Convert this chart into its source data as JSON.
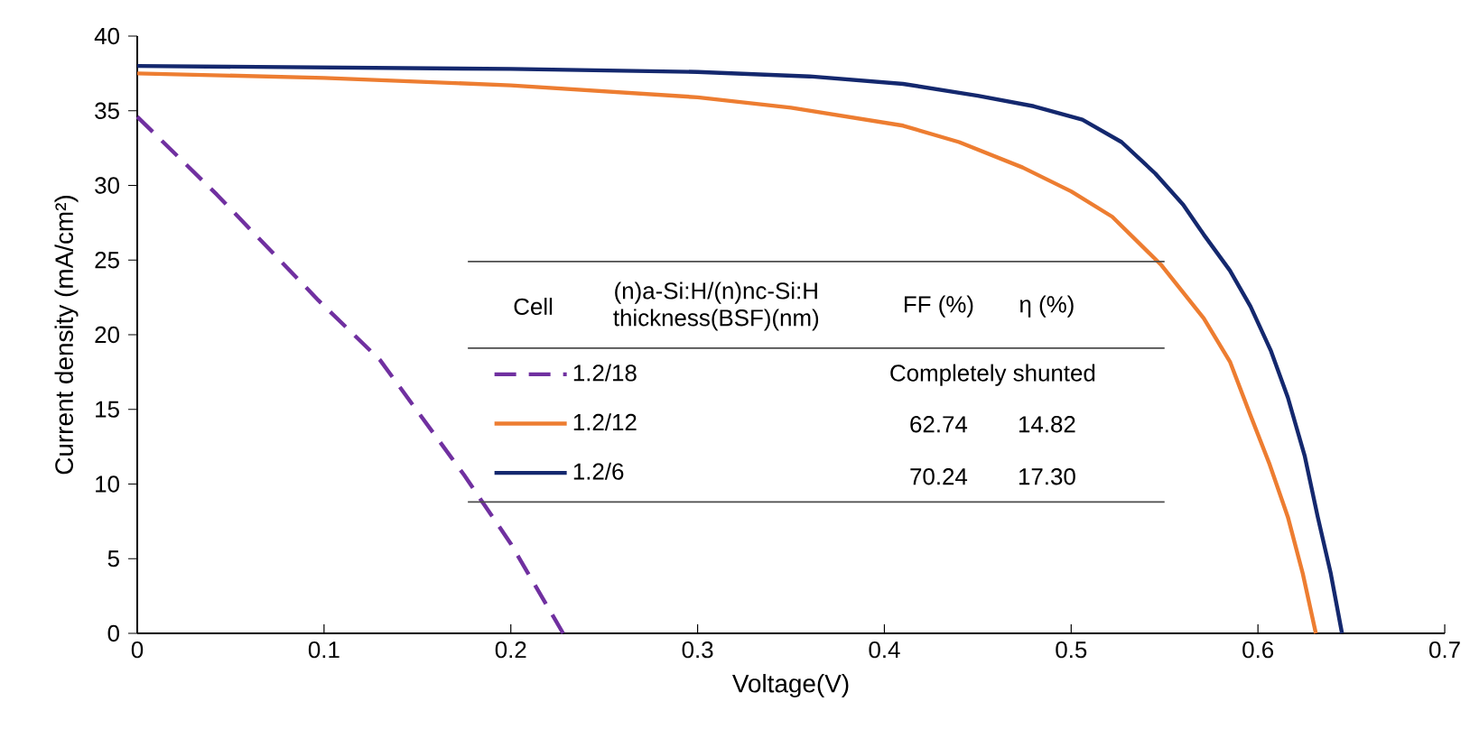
{
  "chart_data": {
    "type": "line",
    "xlabel": "Voltage(V)",
    "ylabel": "Current density (mA/cm²)",
    "xlim": [
      0,
      0.7
    ],
    "ylim": [
      0,
      40
    ],
    "xticks": [
      0,
      0.1,
      0.2,
      0.3,
      0.4,
      0.5,
      0.6,
      0.7
    ],
    "yticks": [
      0,
      5,
      10,
      15,
      20,
      25,
      30,
      35,
      40
    ],
    "marker": "none",
    "legend": "center",
    "legend_title": "Cell",
    "series": [
      {
        "name": "1.2/18",
        "color": "#7030a0",
        "line_style": "dashed",
        "x": [
          0,
          0.0425,
          0.097,
          0.13,
          0.175,
          0.2,
          0.228
        ],
        "values": [
          34.6,
          29.4,
          22.3,
          18.3,
          10.6,
          6.0,
          0
        ]
      },
      {
        "name": "1.2/12",
        "color": "#ed7d31",
        "line_style": "solid",
        "x": [
          0,
          0.1,
          0.2,
          0.3,
          0.35,
          0.41,
          0.44,
          0.474,
          0.5,
          0.522,
          0.548,
          0.571,
          0.585,
          0.596,
          0.606,
          0.616,
          0.624,
          0.631
        ],
        "values": [
          37.5,
          37.2,
          36.7,
          35.9,
          35.2,
          34.0,
          32.9,
          31.2,
          29.6,
          27.9,
          24.7,
          21.1,
          18.2,
          14.6,
          11.4,
          7.8,
          4.0,
          0
        ]
      },
      {
        "name": "1.2/6",
        "color": "#14286e",
        "line_style": "solid",
        "x": [
          0,
          0.1,
          0.2,
          0.3,
          0.36,
          0.41,
          0.45,
          0.48,
          0.506,
          0.527,
          0.545,
          0.56,
          0.571,
          0.585,
          0.596,
          0.607,
          0.616,
          0.625,
          0.632,
          0.639,
          0.645
        ],
        "values": [
          38.0,
          37.9,
          37.8,
          37.6,
          37.3,
          36.8,
          36.0,
          35.3,
          34.4,
          32.9,
          30.8,
          28.7,
          26.7,
          24.3,
          21.9,
          18.9,
          15.8,
          11.9,
          7.8,
          4.0,
          0
        ]
      }
    ],
    "annotations": [
      "(n)a-Si:H/(n)nc-Si:H thickness(BSF)(nm)",
      "FF (%)",
      "η (%)",
      "Completely shunted",
      "62.74",
      "14.82",
      "70.24",
      "17.30"
    ]
  }
}
